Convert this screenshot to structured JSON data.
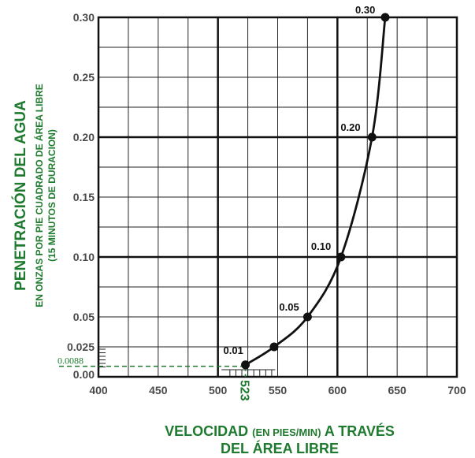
{
  "chart_data": {
    "type": "line",
    "title": "",
    "xlabel_line1_a": "VELOCIDAD ",
    "xlabel_line1_b": "(EN PIES/MIN)",
    "xlabel_line1_c": " A TRAVÉS",
    "xlabel_line2": "DEL ÁREA LIBRE",
    "ylabel_line1": "PENETRACIÓN DEL AGUA",
    "ylabel_line2": "EN ONZAS POR PIE CUADRADO DE ÁREA LIBRE",
    "ylabel_line3": "(15 MINUTOS DE DURACION)",
    "xlim": [
      400,
      700
    ],
    "ylim": [
      0,
      0.3
    ],
    "x_ticks": [
      400,
      450,
      500,
      550,
      600,
      650,
      700
    ],
    "x_tick_labels": [
      "400",
      "450",
      "500",
      "550",
      "600",
      "650",
      "700"
    ],
    "y_ticks": [
      0,
      0.025,
      0.05,
      0.1,
      0.15,
      0.2,
      0.25,
      0.3
    ],
    "y_tick_labels": [
      "0.00",
      "0.025",
      "0.05",
      "0.10",
      "0.15",
      "0.20",
      "0.25",
      "0.30"
    ],
    "grid": true,
    "series": [
      {
        "points": [
          {
            "x": 523,
            "y": 0.01,
            "label": "0.01"
          },
          {
            "x": 547,
            "y": 0.025,
            "label": ""
          },
          {
            "x": 575,
            "y": 0.05,
            "label": "0.05"
          },
          {
            "x": 603,
            "y": 0.1,
            "label": "0.10"
          },
          {
            "x": 629,
            "y": 0.2,
            "label": "0.20"
          },
          {
            "x": 640,
            "y": 0.3,
            "label": "0.30"
          }
        ]
      }
    ],
    "annotation": {
      "x_label": "523",
      "y_label": "0.0088",
      "x": 523,
      "y": 0.0088
    },
    "colors": {
      "label_green": "#1e7a2e",
      "curve": "#111111",
      "grid": "#222222",
      "tick_text": "#4a4a4a"
    }
  }
}
